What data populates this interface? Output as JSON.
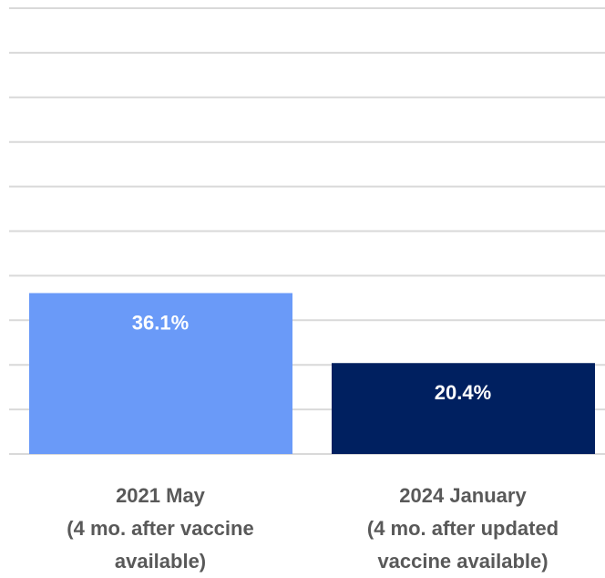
{
  "chart_data": {
    "type": "bar",
    "categories": [
      "2021 May\n(4 mo. after vaccine\navailable)",
      "2024 January\n(4 mo. after updated\nvaccine available)"
    ],
    "series": [
      {
        "colors": [
          "#6a9af8",
          "#002060"
        ],
        "values": [
          36.1,
          20.4
        ],
        "value_labels": [
          "36.1%",
          "20.4%"
        ]
      }
    ],
    "ylim": [
      0,
      100
    ],
    "yticks": [
      0,
      10,
      20,
      30,
      40,
      50,
      60,
      70,
      80,
      90,
      100
    ],
    "grid": true
  }
}
